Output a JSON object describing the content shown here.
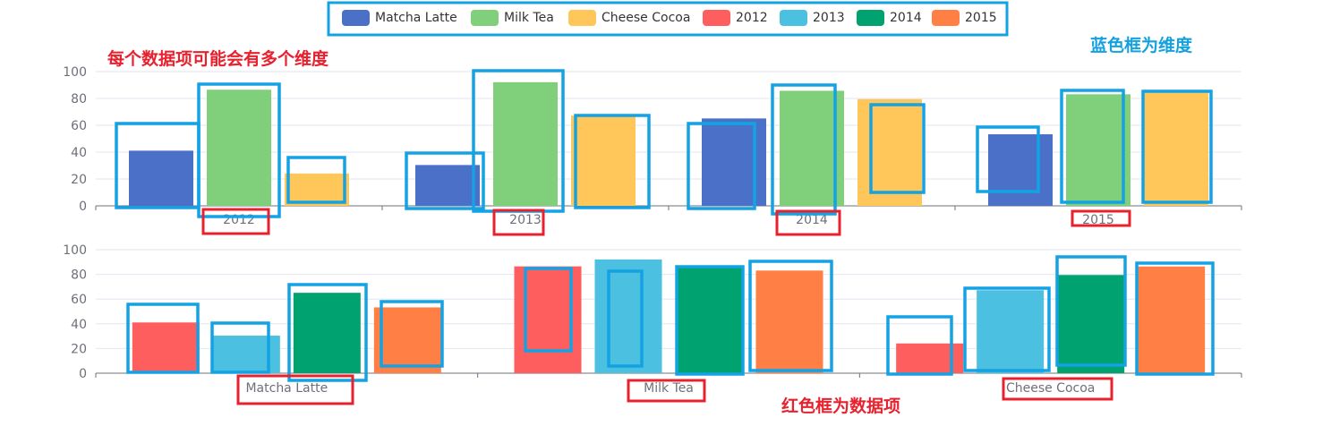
{
  "legend": [
    "Matcha Latte",
    "Milk Tea",
    "Cheese Cocoa",
    "2012",
    "2013",
    "2014",
    "2015"
  ],
  "colors": {
    "Matcha Latte": "#4a70c8",
    "Milk Tea": "#80cf7b",
    "Cheese Cocoa": "#ffc75a",
    "2012": "#ff5e5e",
    "2013": "#4bc0e0",
    "2014": "#00a270",
    "2015": "#ff7f45",
    "annotation_blue": "#13a2e4",
    "annotation_red": "#e8212e"
  },
  "annotations": {
    "top_left": "每个数据项可能会有多个维度",
    "top_right": "蓝色框为维度",
    "bottom": "红色框为数据项"
  },
  "chart_data": [
    {
      "type": "bar",
      "categories": [
        "2012",
        "2013",
        "2014",
        "2015"
      ],
      "series": [
        {
          "name": "Matcha Latte",
          "values": [
            41.1,
            30.4,
            65.1,
            53.3
          ]
        },
        {
          "name": "Milk Tea",
          "values": [
            86.5,
            92.1,
            85.7,
            83.1
          ]
        },
        {
          "name": "Cheese Cocoa",
          "values": [
            24.1,
            67.2,
            79.5,
            86.4
          ]
        }
      ],
      "ylim": [
        0,
        100
      ],
      "yticks": [
        0,
        20,
        40,
        60,
        80,
        100
      ],
      "grid": true
    },
    {
      "type": "bar",
      "categories": [
        "Matcha Latte",
        "Milk Tea",
        "Cheese Cocoa"
      ],
      "series": [
        {
          "name": "2012",
          "values": [
            41.1,
            86.5,
            24.1
          ]
        },
        {
          "name": "2013",
          "values": [
            30.4,
            92.1,
            67.2
          ]
        },
        {
          "name": "2014",
          "values": [
            65.1,
            85.7,
            79.5
          ]
        },
        {
          "name": "2015",
          "values": [
            53.3,
            83.1,
            86.4
          ]
        }
      ],
      "ylim": [
        0,
        100
      ],
      "yticks": [
        0,
        20,
        40,
        60,
        80,
        100
      ],
      "grid": true
    }
  ]
}
